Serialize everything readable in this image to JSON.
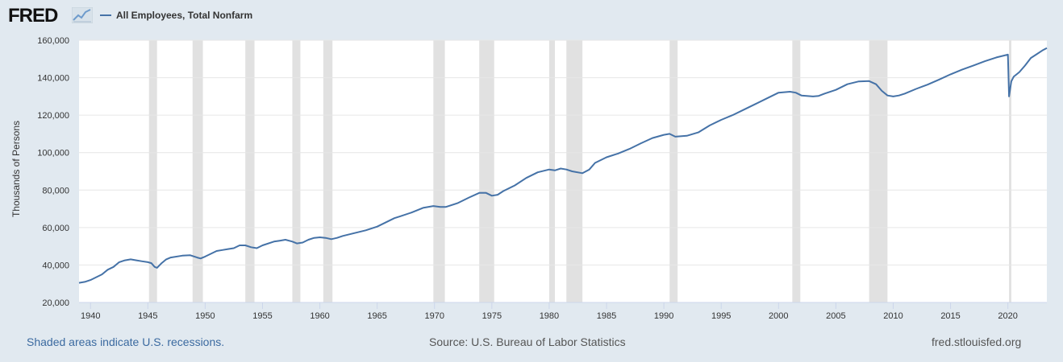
{
  "header": {
    "logo_text": "FRED",
    "legend_label": "All Employees, Total Nonfarm"
  },
  "colors": {
    "series": "#4572a7",
    "recession": "#e1e1e1",
    "background": "#e1e9f0",
    "plot_bg": "#ffffff",
    "link": "#3b6aa0"
  },
  "footer": {
    "recessions_note": "Shaded areas indicate U.S. recessions.",
    "source": "Source: U.S. Bureau of Labor Statistics",
    "site": "fred.stlouisfed.org"
  },
  "chart_data": {
    "type": "line",
    "title": "All Employees, Total Nonfarm",
    "xlabel": "",
    "ylabel": "Thousands of Persons",
    "xlim": [
      1939,
      2023.4
    ],
    "ylim": [
      20000,
      160000
    ],
    "grid": true,
    "legend": "top-left",
    "x_ticks": [
      1940,
      1945,
      1950,
      1955,
      1960,
      1965,
      1970,
      1975,
      1980,
      1985,
      1990,
      1995,
      2000,
      2005,
      2010,
      2015,
      2020
    ],
    "x_tick_labels": [
      "1940",
      "1945",
      "1950",
      "1955",
      "1960",
      "1965",
      "1970",
      "1975",
      "1980",
      "1985",
      "1990",
      "1995",
      "2000",
      "2005",
      "2010",
      "2015",
      "2020"
    ],
    "y_ticks": [
      20000,
      40000,
      60000,
      80000,
      100000,
      120000,
      140000,
      160000
    ],
    "y_tick_labels": [
      "20,000",
      "40,000",
      "60,000",
      "80,000",
      "100,000",
      "120,000",
      "140,000",
      "160,000"
    ],
    "recessions": [
      [
        1945.1,
        1945.8
      ],
      [
        1948.9,
        1949.8
      ],
      [
        1953.5,
        1954.3
      ],
      [
        1957.6,
        1958.3
      ],
      [
        1960.3,
        1961.1
      ],
      [
        1969.9,
        1970.9
      ],
      [
        1973.9,
        1975.2
      ],
      [
        1980.0,
        1980.5
      ],
      [
        1981.5,
        1982.9
      ],
      [
        1990.5,
        1991.2
      ],
      [
        2001.2,
        2001.9
      ],
      [
        2007.9,
        2009.5
      ],
      [
        2020.1,
        2020.3
      ]
    ],
    "series": [
      {
        "name": "All Employees, Total Nonfarm",
        "x": [
          1939.0,
          1939.5,
          1940.0,
          1941.0,
          1941.5,
          1942.0,
          1942.5,
          1943.0,
          1943.5,
          1944.0,
          1944.5,
          1945.0,
          1945.3,
          1945.6,
          1945.8,
          1946.2,
          1946.6,
          1947.0,
          1948.0,
          1948.7,
          1949.3,
          1949.6,
          1950.0,
          1951.0,
          1951.5,
          1952.0,
          1952.5,
          1953.0,
          1953.5,
          1954.0,
          1954.5,
          1955.0,
          1956.0,
          1956.5,
          1957.0,
          1957.6,
          1958.0,
          1958.5,
          1959.0,
          1959.5,
          1960.0,
          1960.5,
          1961.0,
          1961.5,
          1962.0,
          1963.0,
          1964.0,
          1965.0,
          1966.0,
          1966.5,
          1967.0,
          1968.0,
          1969.0,
          1969.9,
          1970.5,
          1971.0,
          1972.0,
          1973.0,
          1973.9,
          1974.5,
          1975.0,
          1975.5,
          1976.0,
          1977.0,
          1978.0,
          1979.0,
          1980.0,
          1980.5,
          1981.0,
          1981.5,
          1982.0,
          1982.9,
          1983.5,
          1984.0,
          1985.0,
          1986.0,
          1987.0,
          1988.0,
          1989.0,
          1990.0,
          1990.5,
          1991.0,
          1992.0,
          1993.0,
          1994.0,
          1995.0,
          1996.0,
          1997.0,
          1998.0,
          1999.0,
          2000.0,
          2001.0,
          2001.5,
          2002.0,
          2003.0,
          2003.5,
          2004.0,
          2005.0,
          2006.0,
          2007.0,
          2007.9,
          2008.5,
          2009.0,
          2009.5,
          2010.0,
          2010.5,
          2011.0,
          2012.0,
          2013.0,
          2014.0,
          2015.0,
          2016.0,
          2017.0,
          2018.0,
          2019.0,
          2020.0,
          2020.1,
          2020.3,
          2020.5,
          2021.0,
          2021.5,
          2022.0,
          2022.5,
          2023.0,
          2023.4
        ],
        "values": [
          30500,
          31000,
          32000,
          35000,
          37500,
          39000,
          41500,
          42500,
          43000,
          42500,
          42000,
          41500,
          41000,
          39000,
          38500,
          41000,
          43000,
          44000,
          45000,
          45200,
          44000,
          43500,
          44500,
          47500,
          48000,
          48500,
          49000,
          50500,
          50500,
          49500,
          49000,
          50500,
          52500,
          53000,
          53500,
          52500,
          51500,
          52000,
          53500,
          54500,
          54800,
          54500,
          53800,
          54500,
          55500,
          57000,
          58500,
          60500,
          63500,
          65000,
          66000,
          68000,
          70500,
          71500,
          71000,
          71000,
          73000,
          76000,
          78500,
          78500,
          77000,
          77500,
          79500,
          82500,
          86500,
          89500,
          91000,
          90500,
          91500,
          91000,
          90000,
          89000,
          91000,
          94500,
          97500,
          99500,
          102000,
          105000,
          107800,
          109500,
          110000,
          108500,
          109000,
          110800,
          114500,
          117500,
          120000,
          123000,
          126000,
          129000,
          132000,
          132500,
          132000,
          130500,
          130000,
          130300,
          131500,
          133500,
          136500,
          138000,
          138200,
          136500,
          133000,
          130500,
          130000,
          130500,
          131500,
          134000,
          136300,
          139000,
          141800,
          144300,
          146500,
          148800,
          150800,
          152300,
          130000,
          138000,
          140500,
          143000,
          146500,
          150500,
          152500,
          154500,
          155800
        ]
      }
    ]
  }
}
